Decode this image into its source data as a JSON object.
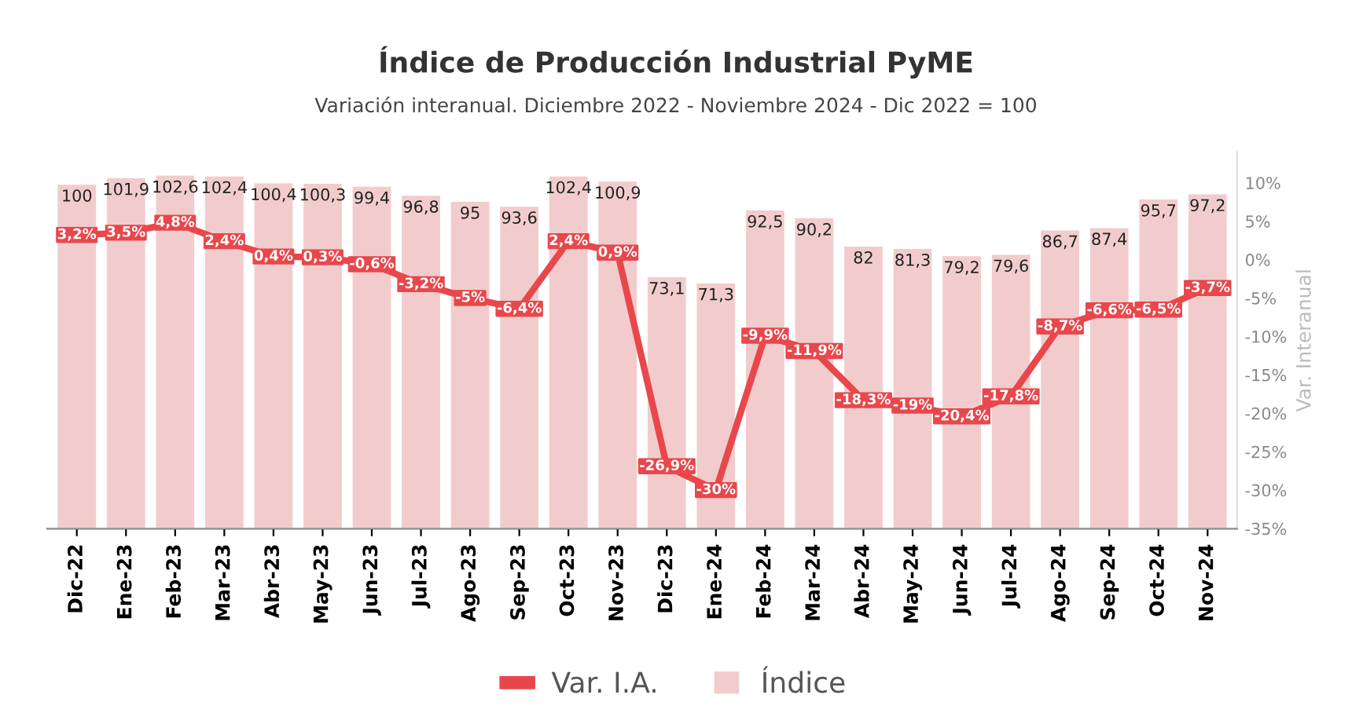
{
  "chart_data": {
    "type": "bar",
    "title": "Índice de Producción Industrial PyME",
    "subtitle": "Variación interanual. Diciembre 2022 - Noviembre 2024 - Dic 2022 = 100",
    "y2label": "Var. Interanual",
    "categories": [
      "Dic-22",
      "Ene-23",
      "Feb-23",
      "Mar-23",
      "Abr-23",
      "May-23",
      "Jun-23",
      "Jul-23",
      "Ago-23",
      "Sep-23",
      "Oct-23",
      "Nov-23",
      "Dic-23",
      "Ene-24",
      "Feb-24",
      "Mar-24",
      "Abr-24",
      "May-24",
      "Jun-24",
      "Jul-24",
      "Ago-24",
      "Sep-24",
      "Oct-24",
      "Nov-24"
    ],
    "series": [
      {
        "name": "Var. I.A.",
        "type": "line",
        "axis": "y2",
        "color": "#e8474c",
        "values": [
          3.2,
          3.5,
          4.8,
          2.4,
          0.4,
          0.3,
          -0.6,
          -3.2,
          -5,
          -6.4,
          2.4,
          0.9,
          -26.9,
          -30,
          -9.9,
          -11.9,
          -18.3,
          -19,
          -20.4,
          -17.8,
          -8.7,
          -6.6,
          -6.5,
          -3.7
        ],
        "value_labels": [
          "3,2%",
          "3,5%",
          "4,8%",
          "2,4%",
          "0,4%",
          "0,3%",
          "-0,6%",
          "-3,2%",
          "-5%",
          "-6,4%",
          "2,4%",
          "0,9%",
          "-26,9%",
          "-30%",
          "-9,9%",
          "-11,9%",
          "-18,3%",
          "-19%",
          "-20,4%",
          "-17,8%",
          "-8,7%",
          "-6,6%",
          "-6,5%",
          "-3,7%"
        ]
      },
      {
        "name": "Índice",
        "color": "#f2cccc",
        "values": [
          100,
          101.9,
          102.6,
          102.4,
          100.4,
          100.3,
          99.4,
          96.8,
          95,
          93.6,
          102.4,
          100.9,
          73.1,
          71.3,
          92.5,
          90.2,
          82,
          81.3,
          79.2,
          79.6,
          86.7,
          87.4,
          95.7,
          97.2
        ],
        "value_labels": [
          "100",
          "101,9",
          "102,6",
          "102,4",
          "100,4",
          "100,3",
          "99,4",
          "96,8",
          "95",
          "93,6",
          "102,4",
          "100,9",
          "73,1",
          "71,3",
          "92,5",
          "90,2",
          "82",
          "81,3",
          "79,2",
          "79,6",
          "86,7",
          "87,4",
          "95,7",
          "97,2"
        ]
      }
    ],
    "ylim": [
      0,
      109.5
    ],
    "y2lim": [
      -35,
      14
    ],
    "y2ticks": [
      {
        "value": 10,
        "label": "10%"
      },
      {
        "value": 5,
        "label": "5%"
      },
      {
        "value": 0,
        "label": "0%"
      },
      {
        "value": -5,
        "label": "-5%"
      },
      {
        "value": -10,
        "label": "-10%"
      },
      {
        "value": -15,
        "label": "-15%"
      },
      {
        "value": -20,
        "label": "-20%"
      },
      {
        "value": -25,
        "label": "-25%"
      },
      {
        "value": -30,
        "label": "-30%"
      },
      {
        "value": -35,
        "label": "-35%"
      }
    ],
    "legend": "bottom",
    "line_style": "solid"
  }
}
